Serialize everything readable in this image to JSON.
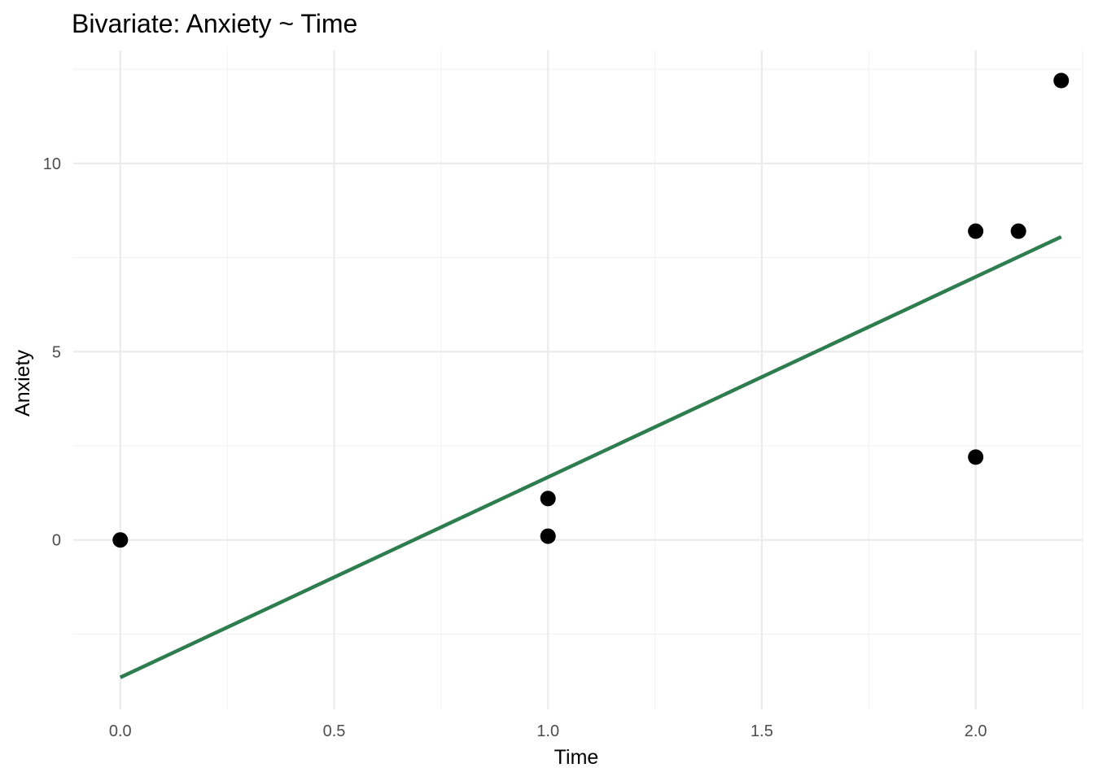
{
  "chart_data": {
    "type": "scatter",
    "title": "Bivariate: Anxiety ~ Time",
    "xlabel": "Time",
    "ylabel": "Anxiety",
    "xlim": [
      -0.11,
      2.25
    ],
    "ylim": [
      -4.5,
      13.0
    ],
    "x_ticks": [
      0.0,
      0.5,
      1.0,
      1.5,
      2.0
    ],
    "x_tick_labels": [
      "0.0",
      "0.5",
      "1.0",
      "1.5",
      "2.0"
    ],
    "y_ticks": [
      0,
      5,
      10
    ],
    "y_tick_labels": [
      "0",
      "5",
      "10"
    ],
    "grid": true,
    "points": [
      {
        "x": 0.0,
        "y": 0.0
      },
      {
        "x": 1.0,
        "y": 1.1
      },
      {
        "x": 1.0,
        "y": 0.1
      },
      {
        "x": 2.0,
        "y": 8.2
      },
      {
        "x": 2.1,
        "y": 8.2
      },
      {
        "x": 2.0,
        "y": 2.2
      },
      {
        "x": 2.2,
        "y": 12.2
      }
    ],
    "point_color": "#000000",
    "fit_line": {
      "x": [
        0.0,
        2.2
      ],
      "y": [
        -3.65,
        8.05
      ],
      "color": "#2e7d4f"
    }
  }
}
